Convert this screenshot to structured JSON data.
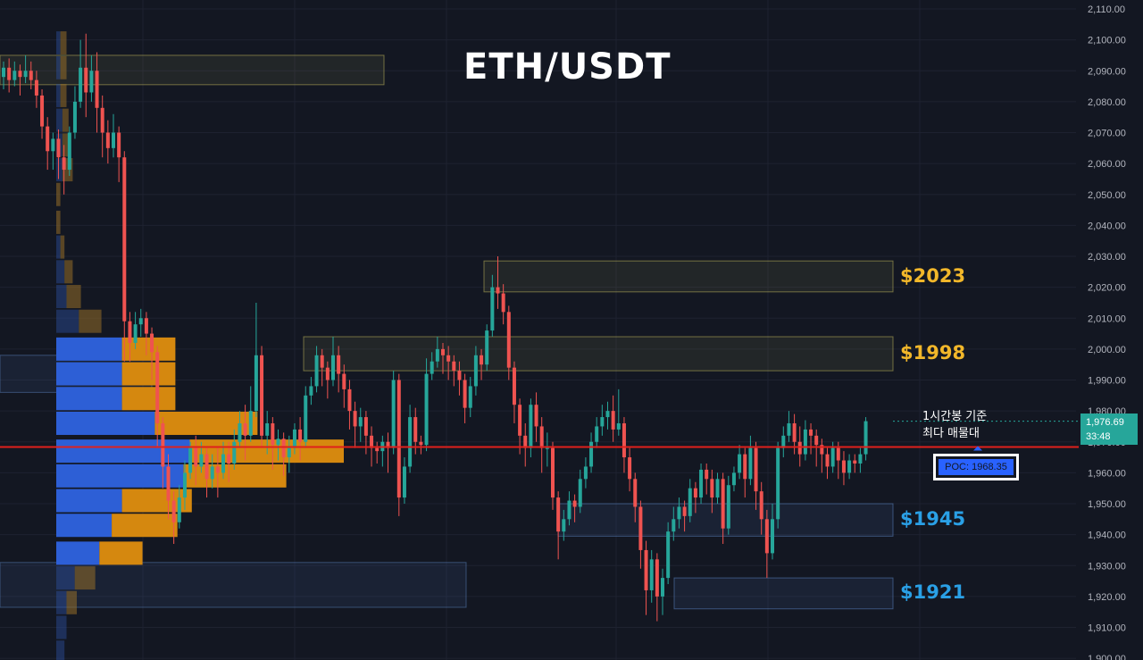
{
  "title": "ETH/USDT",
  "chart_data": {
    "type": "candlestick",
    "title": "ETH/USDT",
    "ylim": [
      1900,
      2110
    ],
    "y_ticks": [
      "2,110.00",
      "2,100.00",
      "2,090.00",
      "2,080.00",
      "2,070.00",
      "2,060.00",
      "2,050.00",
      "2,040.00",
      "2,030.00",
      "2,020.00",
      "2,010.00",
      "2,000.00",
      "1,990.00",
      "1,980.00",
      "1,970.00",
      "1,960.00",
      "1,950.00",
      "1,940.00",
      "1,930.00",
      "1,920.00",
      "1,910.00",
      "1,900.00"
    ],
    "y_tick_values": [
      2110,
      2100,
      2090,
      2080,
      2070,
      2060,
      2050,
      2040,
      2030,
      2020,
      2010,
      2000,
      1990,
      1980,
      1970,
      1960,
      1950,
      1940,
      1930,
      1920,
      1910,
      1900
    ],
    "current_price": {
      "value": 1976.69,
      "label": "1,976.69",
      "countdown": "33:48"
    },
    "poc": {
      "value": 1968.35,
      "label": "POC: 1968.35"
    },
    "annotation": {
      "line1": "1시간봉 기준",
      "line2": "최다 매물대"
    },
    "zones": [
      {
        "name": "resistance-2023",
        "top": 2028.5,
        "bottom": 2018.5,
        "label": "$2023",
        "color": "#f2b72a"
      },
      {
        "name": "resistance-1998",
        "top": 2004.0,
        "bottom": 1993.0,
        "label": "$1998",
        "color": "#f2b72a"
      },
      {
        "name": "support-1945",
        "top": 1950.0,
        "bottom": 1939.5,
        "label": "$1945",
        "color": "#2aa0e6"
      },
      {
        "name": "support-1921",
        "top": 1926.0,
        "bottom": 1916.0,
        "label": "$1921",
        "color": "#2aa0e6"
      },
      {
        "name": "old-zone-2090",
        "top": 2095.0,
        "bottom": 2085.5,
        "label": "",
        "color": "#c8c04a"
      }
    ],
    "volume_profile": [
      {
        "price": 2099,
        "up": 2,
        "down": 3
      },
      {
        "price": 2091,
        "up": 2,
        "down": 3
      },
      {
        "price": 2082,
        "up": 2,
        "down": 3
      },
      {
        "price": 2074,
        "up": 3,
        "down": 3
      },
      {
        "price": 2066,
        "up": 3,
        "down": 4
      },
      {
        "price": 2058,
        "up": 3,
        "down": 5
      },
      {
        "price": 2050,
        "up": 0,
        "down": 2
      },
      {
        "price": 2041,
        "up": 0,
        "down": 2
      },
      {
        "price": 2033,
        "up": 2,
        "down": 2
      },
      {
        "price": 2025,
        "up": 4,
        "down": 4
      },
      {
        "price": 2017,
        "up": 5,
        "down": 7
      },
      {
        "price": 2009,
        "up": 11,
        "down": 11
      },
      {
        "price": 2000,
        "up": 32,
        "down": 26
      },
      {
        "price": 1992,
        "up": 32,
        "down": 26
      },
      {
        "price": 1984,
        "up": 32,
        "down": 26
      },
      {
        "price": 1976,
        "up": 48,
        "down": 50
      },
      {
        "price": 1967,
        "up": 65,
        "down": 75
      },
      {
        "price": 1959,
        "up": 62,
        "down": 50
      },
      {
        "price": 1951,
        "up": 32,
        "down": 34
      },
      {
        "price": 1943,
        "up": 27,
        "down": 32
      },
      {
        "price": 1934,
        "up": 21,
        "down": 21
      },
      {
        "price": 1926,
        "up": 9,
        "down": 10
      },
      {
        "price": 1918,
        "up": 5,
        "down": 5
      },
      {
        "price": 1910,
        "up": 5,
        "down": 0
      },
      {
        "price": 1902,
        "up": 4,
        "down": 0
      }
    ],
    "candles": [
      [
        2088,
        2091,
        2084,
        2093
      ],
      [
        2091,
        2087,
        2083,
        2094
      ],
      [
        2087,
        2090,
        2085,
        2093
      ],
      [
        2090,
        2088,
        2082,
        2092
      ],
      [
        2088,
        2090,
        2086,
        2095
      ],
      [
        2090,
        2087,
        2084,
        2093
      ],
      [
        2087,
        2082,
        2078,
        2090
      ],
      [
        2082,
        2072,
        2068,
        2084
      ],
      [
        2072,
        2064,
        2058,
        2075
      ],
      [
        2064,
        2068,
        2058,
        2070
      ],
      [
        2068,
        2062,
        2055,
        2071
      ],
      [
        2062,
        2058,
        2050,
        2066
      ],
      [
        2058,
        2070,
        2056,
        2072
      ],
      [
        2070,
        2080,
        2068,
        2085
      ],
      [
        2080,
        2091,
        2078,
        2100
      ],
      [
        2091,
        2083,
        2075,
        2102
      ],
      [
        2083,
        2090,
        2080,
        2095
      ],
      [
        2090,
        2078,
        2070,
        2096
      ],
      [
        2078,
        2070,
        2062,
        2082
      ],
      [
        2070,
        2065,
        2060,
        2074
      ],
      [
        2065,
        2070,
        2062,
        2076
      ],
      [
        2070,
        2062,
        2054,
        2072
      ],
      [
        2062,
        2009,
        1996,
        2064
      ],
      [
        2009,
        2002,
        1996,
        2012
      ],
      [
        2002,
        2008,
        2000,
        2012
      ],
      [
        2008,
        2010,
        2004,
        2013
      ],
      [
        2010,
        2005,
        1998,
        2012
      ],
      [
        2005,
        1999,
        1990,
        2007
      ],
      [
        1999,
        1976,
        1968,
        2001
      ],
      [
        1976,
        1962,
        1955,
        1978
      ],
      [
        1962,
        1951,
        1945,
        1966
      ],
      [
        1951,
        1944,
        1937,
        1954
      ],
      [
        1944,
        1952,
        1942,
        1956
      ],
      [
        1952,
        1960,
        1948,
        1964
      ],
      [
        1960,
        1968,
        1958,
        1970
      ],
      [
        1968,
        1962,
        1956,
        1972
      ],
      [
        1962,
        1966,
        1960,
        1970
      ],
      [
        1966,
        1958,
        1952,
        1968
      ],
      [
        1958,
        1962,
        1955,
        1966
      ],
      [
        1962,
        1960,
        1952,
        1968
      ],
      [
        1960,
        1966,
        1958,
        1970
      ],
      [
        1966,
        1963,
        1957,
        1970
      ],
      [
        1963,
        1970,
        1961,
        1974
      ],
      [
        1970,
        1976,
        1968,
        1980
      ],
      [
        1976,
        1972,
        1964,
        1982
      ],
      [
        1972,
        1980,
        1970,
        1988
      ],
      [
        1980,
        1998,
        1978,
        2015
      ],
      [
        1998,
        1972,
        1968,
        2001
      ],
      [
        1972,
        1976,
        1966,
        1980
      ],
      [
        1976,
        1969,
        1961,
        1978
      ],
      [
        1969,
        1971,
        1964,
        1974
      ],
      [
        1971,
        1965,
        1959,
        1973
      ],
      [
        1965,
        1968,
        1960,
        1972
      ],
      [
        1968,
        1974,
        1966,
        1976
      ],
      [
        1974,
        1970,
        1964,
        1978
      ],
      [
        1970,
        1985,
        1968,
        1988
      ],
      [
        1985,
        1988,
        1982,
        1991
      ],
      [
        1988,
        1998,
        1986,
        2001
      ],
      [
        1998,
        1994,
        1988,
        2000
      ],
      [
        1994,
        1990,
        1984,
        1996
      ],
      [
        1990,
        1998,
        1988,
        2004
      ],
      [
        1998,
        1992,
        1986,
        2001
      ],
      [
        1992,
        1987,
        1981,
        1995
      ],
      [
        1987,
        1980,
        1974,
        1990
      ],
      [
        1980,
        1975,
        1968,
        1983
      ],
      [
        1975,
        1978,
        1970,
        1981
      ],
      [
        1978,
        1972,
        1966,
        1980
      ],
      [
        1972,
        1968,
        1962,
        1975
      ],
      [
        1968,
        1967,
        1963,
        1970
      ],
      [
        1967,
        1970,
        1962,
        1972
      ],
      [
        1970,
        1968,
        1960,
        1973
      ],
      [
        1968,
        1990,
        1966,
        1993
      ],
      [
        1990,
        1952,
        1946,
        1992
      ],
      [
        1952,
        1962,
        1950,
        1965
      ],
      [
        1962,
        1978,
        1960,
        1982
      ],
      [
        1978,
        1970,
        1966,
        1981
      ],
      [
        1970,
        1969,
        1966,
        1972
      ],
      [
        1969,
        1992,
        1967,
        1997
      ],
      [
        1992,
        1996,
        1990,
        1999
      ],
      [
        1996,
        2000,
        1994,
        2004
      ],
      [
        2000,
        1998,
        1992,
        2002
      ],
      [
        1998,
        1996,
        1990,
        2001
      ],
      [
        1996,
        1993,
        1988,
        1998
      ],
      [
        1993,
        1990,
        1985,
        1996
      ],
      [
        1990,
        1981,
        1976,
        1992
      ],
      [
        1981,
        1988,
        1978,
        1991
      ],
      [
        1988,
        1998,
        1985,
        2001
      ],
      [
        1998,
        1995,
        1990,
        2000
      ],
      [
        1995,
        2006,
        1993,
        2008
      ],
      [
        2006,
        2020,
        2004,
        2024
      ],
      [
        2020,
        2018,
        2013,
        2030
      ],
      [
        2018,
        2012,
        2008,
        2021
      ],
      [
        2012,
        1994,
        1990,
        2014
      ],
      [
        1994,
        1982,
        1976,
        1996
      ],
      [
        1982,
        1972,
        1966,
        1984
      ],
      [
        1972,
        1968,
        1962,
        1976
      ],
      [
        1968,
        1982,
        1965,
        1984
      ],
      [
        1982,
        1975,
        1970,
        1986
      ],
      [
        1975,
        1968,
        1960,
        1978
      ],
      [
        1968,
        1968,
        1962,
        1973
      ],
      [
        1968,
        1952,
        1948,
        1970
      ],
      [
        1952,
        1941,
        1932,
        1954
      ],
      [
        1941,
        1945,
        1938,
        1948
      ],
      [
        1945,
        1951,
        1943,
        1954
      ],
      [
        1951,
        1949,
        1944,
        1953
      ],
      [
        1949,
        1958,
        1947,
        1961
      ],
      [
        1958,
        1962,
        1955,
        1965
      ],
      [
        1962,
        1970,
        1960,
        1973
      ],
      [
        1970,
        1975,
        1968,
        1978
      ],
      [
        1975,
        1978,
        1972,
        1982
      ],
      [
        1978,
        1980,
        1974,
        1983
      ],
      [
        1980,
        1974,
        1970,
        1985
      ],
      [
        1974,
        1976,
        1972,
        1987
      ],
      [
        1976,
        1965,
        1960,
        1978
      ],
      [
        1965,
        1958,
        1954,
        1968
      ],
      [
        1958,
        1949,
        1944,
        1960
      ],
      [
        1949,
        1935,
        1929,
        1951
      ],
      [
        1935,
        1922,
        1914,
        1938
      ],
      [
        1922,
        1932,
        1918,
        1935
      ],
      [
        1932,
        1920,
        1912,
        1934
      ],
      [
        1920,
        1926,
        1914,
        1929
      ],
      [
        1926,
        1941,
        1924,
        1944
      ],
      [
        1941,
        1945,
        1938,
        1949
      ],
      [
        1945,
        1949,
        1942,
        1952
      ],
      [
        1949,
        1946,
        1941,
        1951
      ],
      [
        1946,
        1955,
        1944,
        1958
      ],
      [
        1955,
        1952,
        1947,
        1957
      ],
      [
        1952,
        1961,
        1950,
        1963
      ],
      [
        1961,
        1958,
        1953,
        1963
      ],
      [
        1958,
        1952,
        1947,
        1961
      ],
      [
        1952,
        1958,
        1950,
        1960
      ],
      [
        1958,
        1942,
        1937,
        1960
      ],
      [
        1942,
        1956,
        1940,
        1959
      ],
      [
        1956,
        1960,
        1954,
        1962
      ],
      [
        1960,
        1966,
        1958,
        1969
      ],
      [
        1966,
        1958,
        1952,
        1968
      ],
      [
        1958,
        1968,
        1956,
        1972
      ],
      [
        1968,
        1954,
        1948,
        1970
      ],
      [
        1954,
        1945,
        1940,
        1957
      ],
      [
        1945,
        1934,
        1926,
        1948
      ],
      [
        1934,
        1945,
        1932,
        1950
      ],
      [
        1945,
        1968,
        1942,
        1970
      ],
      [
        1968,
        1972,
        1965,
        1975
      ],
      [
        1972,
        1976,
        1970,
        1980
      ],
      [
        1976,
        1970,
        1966,
        1979
      ],
      [
        1970,
        1966,
        1962,
        1975
      ],
      [
        1966,
        1974,
        1964,
        1977
      ],
      [
        1974,
        1972,
        1966,
        1976
      ],
      [
        1972,
        1969,
        1962,
        1974
      ],
      [
        1969,
        1966,
        1960,
        1971
      ],
      [
        1966,
        1962,
        1958,
        1968
      ],
      [
        1962,
        1968,
        1960,
        1970
      ],
      [
        1968,
        1964,
        1958,
        1970
      ],
      [
        1964,
        1960,
        1956,
        1967
      ],
      [
        1960,
        1964,
        1958,
        1966
      ],
      [
        1964,
        1963,
        1960,
        1966
      ],
      [
        1963,
        1966,
        1960,
        1968
      ],
      [
        1966,
        1976.69,
        1964,
        1978
      ]
    ]
  }
}
